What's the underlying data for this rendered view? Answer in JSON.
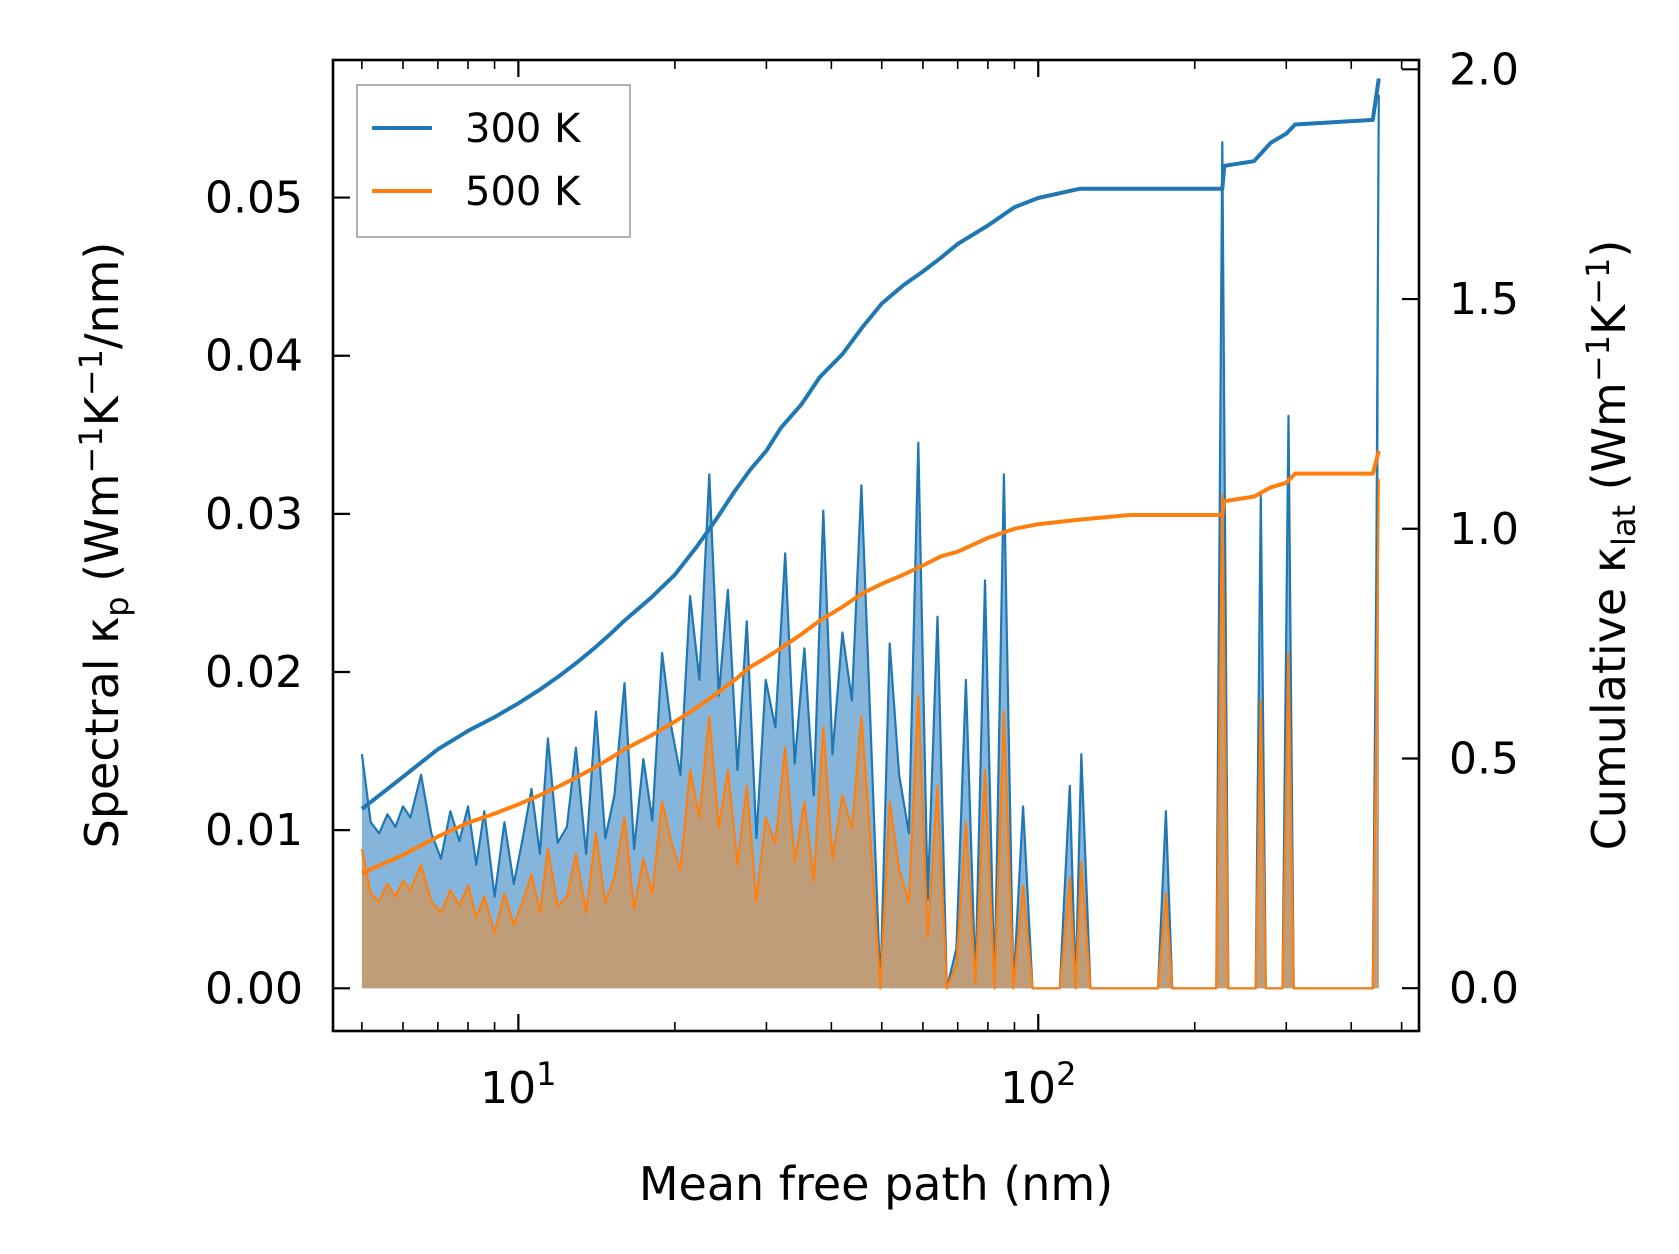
{
  "chart_data": {
    "type": "line",
    "title": "",
    "xlabel": "Mean free path (nm)",
    "ylabel_left": {
      "main": "Spectral κ",
      "sub": "p",
      "unit_open": " (Wm",
      "sup1": "−1",
      "mid": "K",
      "sup2": "−1",
      "unit_close": "/nm)"
    },
    "ylabel_right": {
      "main": "Cumulative κ",
      "sub": "lat",
      "unit_open": " (Wm",
      "sup1": "−1",
      "mid": "K",
      "sup2": "−1",
      "unit_close": ")"
    },
    "x_scale": "log",
    "xlim": [
      4.4,
      540
    ],
    "ylim_left": [
      -0.0027,
      0.0587
    ],
    "ylim_right": [
      -0.0932,
      2.0203
    ],
    "left_ticks": [
      "0.00",
      "0.01",
      "0.02",
      "0.03",
      "0.04",
      "0.05"
    ],
    "right_ticks": [
      "0.0",
      "0.5",
      "1.0",
      "1.5",
      "2.0"
    ],
    "x_ticks": [
      {
        "base": "10",
        "exp": "1",
        "value": 10
      },
      {
        "base": "10",
        "exp": "2",
        "value": 100
      }
    ],
    "legend": {
      "location": "upper-left",
      "entries": [
        "300 K",
        "500 K"
      ]
    },
    "colors": {
      "s300": "#1f77b4",
      "s500": "#ff7f0e",
      "fill300": "#7fb1d9",
      "fill500": "#c69a6e"
    },
    "series": [
      {
        "name": "300 K",
        "spectral": {
          "x": [
            5.0,
            5.2,
            5.4,
            5.6,
            5.8,
            6.0,
            6.2,
            6.5,
            6.8,
            7.1,
            7.4,
            7.7,
            8.0,
            8.3,
            8.6,
            9.0,
            9.4,
            9.8,
            10.2,
            10.6,
            11.0,
            11.4,
            11.9,
            12.4,
            12.9,
            13.5,
            14.1,
            14.7,
            15.3,
            16.0,
            16.7,
            17.4,
            18.1,
            18.9,
            19.7,
            20.5,
            21.4,
            22.3,
            23.3,
            24.3,
            25.3,
            26.4,
            27.5,
            28.7,
            29.9,
            31.2,
            32.6,
            34.0,
            35.5,
            37.0,
            38.6,
            40.2,
            42.0,
            43.8,
            45.7,
            47.6,
            49.7,
            51.8,
            54.0,
            56.4,
            58.8,
            61.3,
            64.0,
            66.7,
            69.6,
            72.6,
            75.7,
            79.0,
            82.4,
            85.9,
            89.6,
            93.5,
            97.5,
            101.0,
            105.0,
            110.0,
            115.0,
            118.0,
            121.0,
            126.0,
            130.0,
            135.0,
            170.0,
            176.0,
            181.0,
            186.0,
            220.0,
            226.0,
            232.0,
            238.0,
            262.0,
            268.0,
            274.0,
            280.0,
            295.0,
            303.0,
            310.0,
            318.0,
            430.0,
            440.0,
            447.0,
            452.0
          ],
          "y": [
            0.0148,
            0.0105,
            0.0098,
            0.011,
            0.0102,
            0.0115,
            0.0108,
            0.0135,
            0.0098,
            0.0082,
            0.0112,
            0.0093,
            0.0115,
            0.0078,
            0.0112,
            0.0058,
            0.0105,
            0.0066,
            0.0095,
            0.0126,
            0.0085,
            0.0158,
            0.0092,
            0.0102,
            0.0152,
            0.0085,
            0.0175,
            0.0095,
            0.0122,
            0.0193,
            0.0088,
            0.0145,
            0.0106,
            0.0212,
            0.0165,
            0.0135,
            0.0248,
            0.0195,
            0.0325,
            0.0185,
            0.0252,
            0.0138,
            0.0232,
            0.0095,
            0.0195,
            0.0165,
            0.0275,
            0.0142,
            0.0215,
            0.0122,
            0.0302,
            0.0148,
            0.0225,
            0.0182,
            0.0318,
            0.0165,
            0.0,
            0.0218,
            0.0135,
            0.0098,
            0.0345,
            0.0056,
            0.0235,
            0.0,
            0.0025,
            0.0195,
            0.0005,
            0.0258,
            0.0,
            0.0325,
            0.0,
            0.0115,
            0.0,
            0.0,
            0.0,
            0.0,
            0.0128,
            0.0,
            0.0148,
            0.0,
            0.0,
            0.0,
            0.0,
            0.0112,
            0.0,
            0.0,
            0.0,
            0.0535,
            0.0,
            0.0,
            0.0,
            0.0312,
            0.0,
            0.0,
            0.0,
            0.0362,
            0.0,
            0.0,
            0.0,
            0.0,
            0.026,
            0.0565
          ]
        },
        "cumulative": {
          "x": [
            5.0,
            6.0,
            7.0,
            8.0,
            9.0,
            10.0,
            11.0,
            12.0,
            13.0,
            14.0,
            15.0,
            16.0,
            18.0,
            20.0,
            22.0,
            24.0,
            26.0,
            28.0,
            30.0,
            32.0,
            35.0,
            38.0,
            42.0,
            46.0,
            50.0,
            55.0,
            60.0,
            65.0,
            70.0,
            80.0,
            90.0,
            100.0,
            120.0,
            150.0,
            180.0,
            226.0,
            228.0,
            260.0,
            280.0,
            300.0,
            312.0,
            440.0,
            452.0
          ],
          "y": [
            0.39,
            0.46,
            0.52,
            0.56,
            0.59,
            0.62,
            0.65,
            0.68,
            0.71,
            0.74,
            0.77,
            0.8,
            0.85,
            0.9,
            0.96,
            1.02,
            1.08,
            1.13,
            1.17,
            1.22,
            1.27,
            1.33,
            1.38,
            1.44,
            1.49,
            1.53,
            1.56,
            1.59,
            1.62,
            1.66,
            1.7,
            1.72,
            1.74,
            1.74,
            1.74,
            1.74,
            1.79,
            1.8,
            1.84,
            1.86,
            1.88,
            1.89,
            1.98
          ]
        }
      },
      {
        "name": "500 K",
        "spectral": {
          "x": [
            5.0,
            5.2,
            5.4,
            5.6,
            5.8,
            6.0,
            6.2,
            6.5,
            6.8,
            7.1,
            7.4,
            7.7,
            8.0,
            8.3,
            8.6,
            9.0,
            9.4,
            9.8,
            10.2,
            10.6,
            11.0,
            11.4,
            11.9,
            12.4,
            12.9,
            13.5,
            14.1,
            14.7,
            15.3,
            16.0,
            16.7,
            17.4,
            18.1,
            18.9,
            19.7,
            20.5,
            21.4,
            22.3,
            23.3,
            24.3,
            25.3,
            26.4,
            27.5,
            28.7,
            29.9,
            31.2,
            32.6,
            34.0,
            35.5,
            37.0,
            38.6,
            40.2,
            42.0,
            43.8,
            45.7,
            47.6,
            49.7,
            51.8,
            54.0,
            56.4,
            58.8,
            61.3,
            64.0,
            66.7,
            69.6,
            72.6,
            75.7,
            79.0,
            82.4,
            85.9,
            89.6,
            93.5,
            97.5,
            101.0,
            105.0,
            110.0,
            115.0,
            118.0,
            121.0,
            126.0,
            130.0,
            135.0,
            170.0,
            176.0,
            181.0,
            186.0,
            220.0,
            226.0,
            232.0,
            238.0,
            262.0,
            268.0,
            274.0,
            280.0,
            295.0,
            303.0,
            310.0,
            318.0,
            430.0,
            440.0,
            447.0,
            452.0
          ],
          "y": [
            0.0088,
            0.006,
            0.0055,
            0.0066,
            0.0058,
            0.0068,
            0.0062,
            0.0078,
            0.0055,
            0.0048,
            0.0062,
            0.0052,
            0.0065,
            0.0045,
            0.0058,
            0.0035,
            0.006,
            0.004,
            0.0055,
            0.0072,
            0.0048,
            0.0088,
            0.0052,
            0.0058,
            0.0085,
            0.0048,
            0.0098,
            0.0054,
            0.007,
            0.0108,
            0.005,
            0.0082,
            0.006,
            0.0118,
            0.0092,
            0.0075,
            0.0138,
            0.0108,
            0.0172,
            0.0102,
            0.0138,
            0.0078,
            0.0128,
            0.0055,
            0.0108,
            0.0092,
            0.0152,
            0.008,
            0.0118,
            0.0068,
            0.0165,
            0.0082,
            0.0122,
            0.0101,
            0.0172,
            0.0092,
            0.0,
            0.0118,
            0.0075,
            0.0055,
            0.0185,
            0.0032,
            0.0128,
            0.0,
            0.0015,
            0.0105,
            0.0003,
            0.0138,
            0.0,
            0.0175,
            0.0,
            0.0065,
            0.0,
            0.0,
            0.0,
            0.0,
            0.007,
            0.0,
            0.008,
            0.0,
            0.0,
            0.0,
            0.0,
            0.006,
            0.0,
            0.0,
            0.0,
            0.0312,
            0.0,
            0.0,
            0.0,
            0.0182,
            0.0,
            0.0,
            0.0,
            0.0212,
            0.0,
            0.0,
            0.0,
            0.0,
            0.0162,
            0.0322
          ]
        },
        "cumulative": {
          "x": [
            5.0,
            6.0,
            7.0,
            8.0,
            9.0,
            10.0,
            11.0,
            12.0,
            13.0,
            14.0,
            15.0,
            16.0,
            18.0,
            20.0,
            22.0,
            24.0,
            26.0,
            28.0,
            30.0,
            32.0,
            35.0,
            38.0,
            42.0,
            46.0,
            50.0,
            55.0,
            60.0,
            65.0,
            70.0,
            80.0,
            90.0,
            100.0,
            120.0,
            150.0,
            180.0,
            226.0,
            228.0,
            260.0,
            280.0,
            300.0,
            312.0,
            440.0,
            452.0
          ],
          "y": [
            0.25,
            0.29,
            0.33,
            0.36,
            0.38,
            0.4,
            0.42,
            0.44,
            0.46,
            0.48,
            0.5,
            0.52,
            0.55,
            0.58,
            0.61,
            0.64,
            0.67,
            0.7,
            0.72,
            0.74,
            0.77,
            0.8,
            0.83,
            0.86,
            0.88,
            0.9,
            0.92,
            0.94,
            0.95,
            0.98,
            1.0,
            1.01,
            1.02,
            1.03,
            1.03,
            1.03,
            1.06,
            1.07,
            1.09,
            1.1,
            1.12,
            1.12,
            1.17
          ]
        }
      }
    ]
  }
}
